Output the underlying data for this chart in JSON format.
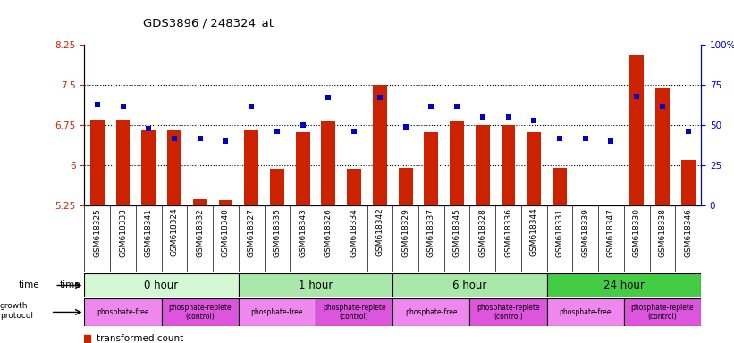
{
  "title": "GDS3896 / 248324_at",
  "samples": [
    "GSM618325",
    "GSM618333",
    "GSM618341",
    "GSM618324",
    "GSM618332",
    "GSM618340",
    "GSM618327",
    "GSM618335",
    "GSM618343",
    "GSM618326",
    "GSM618334",
    "GSM618342",
    "GSM618329",
    "GSM618337",
    "GSM618345",
    "GSM618328",
    "GSM618336",
    "GSM618344",
    "GSM618331",
    "GSM618339",
    "GSM618347",
    "GSM618330",
    "GSM618338",
    "GSM618346"
  ],
  "transformed_count": [
    6.85,
    6.85,
    6.65,
    6.65,
    5.37,
    5.35,
    6.65,
    5.93,
    6.62,
    6.82,
    5.93,
    7.5,
    5.95,
    6.62,
    6.82,
    6.75,
    6.75,
    6.62,
    5.95,
    5.25,
    5.27,
    8.05,
    7.45,
    6.1
  ],
  "percentile_rank": [
    63,
    62,
    48,
    42,
    42,
    40,
    62,
    46,
    50,
    67,
    46,
    67,
    49,
    62,
    62,
    55,
    55,
    53,
    42,
    42,
    40,
    68,
    62,
    46
  ],
  "time_groups": [
    {
      "label": "0 hour",
      "start": 0,
      "end": 6,
      "color": "#d4f7d4"
    },
    {
      "label": "1 hour",
      "start": 6,
      "end": 12,
      "color": "#aae8aa"
    },
    {
      "label": "6 hour",
      "start": 12,
      "end": 18,
      "color": "#aae8aa"
    },
    {
      "label": "24 hour",
      "start": 18,
      "end": 24,
      "color": "#44cc44"
    }
  ],
  "protocol_groups": [
    {
      "label": "phosphate-free",
      "start": 0,
      "end": 3,
      "color": "#ee88ee"
    },
    {
      "label": "phosphate-replete\n(control)",
      "start": 3,
      "end": 6,
      "color": "#dd55dd"
    },
    {
      "label": "phosphate-free",
      "start": 6,
      "end": 9,
      "color": "#ee88ee"
    },
    {
      "label": "phosphate-replete\n(control)",
      "start": 9,
      "end": 12,
      "color": "#dd55dd"
    },
    {
      "label": "phosphate-free",
      "start": 12,
      "end": 15,
      "color": "#ee88ee"
    },
    {
      "label": "phosphate-replete\n(control)",
      "start": 15,
      "end": 18,
      "color": "#dd55dd"
    },
    {
      "label": "phosphate-free",
      "start": 18,
      "end": 21,
      "color": "#ee88ee"
    },
    {
      "label": "phosphate-replete\n(control)",
      "start": 21,
      "end": 24,
      "color": "#dd55dd"
    }
  ],
  "ylim_left": [
    5.25,
    8.25
  ],
  "ylim_right": [
    0,
    100
  ],
  "yticks_left": [
    5.25,
    6.0,
    6.75,
    7.5,
    8.25
  ],
  "yticks_right": [
    0,
    25,
    50,
    75,
    100
  ],
  "ytick_labels_left": [
    "5.25",
    "6",
    "6.75",
    "7.5",
    "8.25"
  ],
  "ytick_labels_right": [
    "0",
    "25",
    "50",
    "75",
    "100%"
  ],
  "bar_color": "#cc2200",
  "dot_color": "#0000cc",
  "background_color": "#ffffff",
  "xticklabel_bg": "#cccccc"
}
